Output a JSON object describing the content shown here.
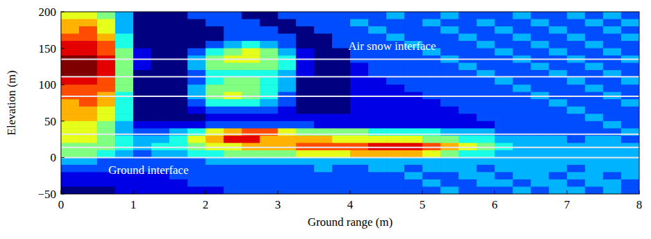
{
  "chart_data": {
    "type": "heatmap",
    "x_label": "Ground range (m)",
    "y_label": "Elevation (m)",
    "xlim": [
      0,
      8
    ],
    "ylim": [
      -50,
      200
    ],
    "xticks": [
      0,
      1,
      2,
      3,
      4,
      5,
      6,
      7,
      8
    ],
    "yticks": [
      {
        "value": -50,
        "label": "−50"
      },
      0,
      50,
      100,
      150,
      200
    ],
    "color": "jet",
    "zlim": [
      0,
      10
    ],
    "x": [
      0.125,
      0.375,
      0.625,
      0.875,
      1.125,
      1.375,
      1.625,
      1.875,
      2.125,
      2.375,
      2.625,
      2.875,
      3.125,
      3.375,
      3.625,
      3.875,
      4.125,
      4.375,
      4.625,
      4.875,
      5.125,
      5.375,
      5.625,
      5.875,
      6.125,
      6.375,
      6.625,
      6.875,
      7.125,
      7.375,
      7.625,
      7.875
    ],
    "y": [
      195,
      185,
      175,
      165,
      155,
      145,
      135,
      125,
      115,
      105,
      95,
      85,
      75,
      65,
      55,
      45,
      35,
      25,
      15,
      5,
      -5,
      -15,
      -25,
      -35,
      -45
    ],
    "cells": [
      [
        6,
        6,
        5,
        3,
        0,
        0,
        0,
        2,
        2,
        2,
        0,
        0,
        2,
        2,
        2,
        2,
        2,
        2,
        3,
        2,
        2,
        3,
        2,
        2,
        2,
        3,
        2,
        2,
        3,
        2,
        3,
        2
      ],
      [
        7,
        7,
        6,
        3,
        0,
        0,
        0,
        0,
        2,
        2,
        2,
        0,
        0,
        2,
        2,
        2,
        3,
        2,
        2,
        2,
        3,
        2,
        2,
        3,
        2,
        2,
        3,
        2,
        2,
        3,
        2,
        3
      ],
      [
        7,
        8,
        6,
        3,
        0,
        0,
        0,
        0,
        0,
        2,
        2,
        2,
        0,
        0,
        2,
        2,
        2,
        3,
        2,
        2,
        2,
        3,
        2,
        2,
        3,
        2,
        2,
        3,
        2,
        2,
        3,
        2
      ],
      [
        8,
        8,
        7,
        4,
        0,
        0,
        0,
        0,
        0,
        2,
        2,
        2,
        2,
        0,
        0,
        2,
        2,
        2,
        3,
        2,
        2,
        2,
        3,
        2,
        2,
        3,
        2,
        2,
        3,
        2,
        2,
        3
      ],
      [
        9,
        9,
        8,
        4,
        0,
        0,
        0,
        0,
        2,
        3,
        4,
        3,
        2,
        0,
        0,
        2,
        2,
        2,
        2,
        3,
        2,
        2,
        2,
        3,
        2,
        2,
        3,
        2,
        2,
        3,
        2,
        2
      ],
      [
        9,
        9,
        8,
        5,
        1,
        0,
        0,
        2,
        4,
        5,
        6,
        5,
        3,
        1,
        0,
        0,
        2,
        2,
        2,
        2,
        3,
        2,
        2,
        2,
        3,
        2,
        2,
        3,
        2,
        2,
        3,
        2
      ],
      [
        10,
        10,
        9,
        5,
        1,
        0,
        0,
        3,
        5,
        6,
        6,
        5,
        4,
        1,
        0,
        0,
        2,
        2,
        2,
        2,
        2,
        3,
        2,
        2,
        2,
        3,
        2,
        2,
        3,
        2,
        2,
        3
      ],
      [
        10,
        10,
        9,
        5,
        1,
        0,
        0,
        3,
        5,
        5,
        5,
        5,
        4,
        1,
        0,
        0,
        1,
        2,
        2,
        2,
        2,
        2,
        3,
        2,
        2,
        2,
        3,
        2,
        2,
        3,
        2,
        2
      ],
      [
        10,
        10,
        9,
        5,
        0,
        0,
        0,
        2,
        4,
        4,
        4,
        4,
        3,
        1,
        0,
        0,
        1,
        2,
        2,
        2,
        2,
        2,
        2,
        3,
        2,
        2,
        2,
        3,
        2,
        2,
        3,
        2
      ],
      [
        9,
        9,
        8,
        5,
        0,
        0,
        0,
        2,
        4,
        5,
        5,
        4,
        3,
        0,
        0,
        0,
        1,
        1,
        2,
        2,
        2,
        2,
        2,
        2,
        3,
        2,
        2,
        2,
        3,
        2,
        2,
        3
      ],
      [
        8,
        8,
        8,
        5,
        0,
        0,
        0,
        3,
        5,
        5,
        5,
        4,
        3,
        0,
        0,
        0,
        1,
        1,
        1,
        2,
        2,
        2,
        2,
        2,
        2,
        3,
        2,
        2,
        2,
        3,
        2,
        2
      ],
      [
        8,
        8,
        7,
        4,
        0,
        0,
        0,
        3,
        5,
        6,
        5,
        4,
        2,
        0,
        0,
        0,
        1,
        1,
        1,
        1,
        2,
        2,
        2,
        2,
        2,
        2,
        3,
        2,
        2,
        2,
        3,
        2
      ],
      [
        7,
        8,
        7,
        4,
        0,
        0,
        0,
        2,
        4,
        4,
        4,
        3,
        2,
        0,
        0,
        0,
        1,
        1,
        1,
        1,
        1,
        2,
        2,
        2,
        2,
        2,
        2,
        3,
        2,
        2,
        2,
        3
      ],
      [
        7,
        7,
        6,
        4,
        0,
        0,
        0,
        1,
        2,
        2,
        2,
        2,
        1,
        0,
        0,
        0,
        1,
        1,
        1,
        1,
        1,
        1,
        2,
        2,
        2,
        2,
        2,
        2,
        3,
        2,
        2,
        2
      ],
      [
        7,
        7,
        6,
        4,
        0,
        0,
        0,
        0,
        1,
        1,
        1,
        1,
        1,
        1,
        1,
        1,
        1,
        1,
        1,
        1,
        1,
        1,
        1,
        2,
        2,
        2,
        2,
        2,
        2,
        3,
        2,
        2
      ],
      [
        6,
        6,
        5,
        3,
        1,
        1,
        1,
        1,
        2,
        2,
        2,
        2,
        2,
        2,
        1,
        1,
        1,
        1,
        1,
        1,
        1,
        1,
        1,
        1,
        2,
        2,
        2,
        2,
        2,
        2,
        3,
        2
      ],
      [
        6,
        6,
        5,
        3,
        2,
        2,
        3,
        4,
        6,
        7,
        8,
        8,
        6,
        5,
        5,
        5,
        5,
        4,
        4,
        4,
        4,
        3,
        3,
        3,
        2,
        2,
        2,
        2,
        2,
        2,
        2,
        3
      ],
      [
        6,
        6,
        5,
        4,
        3,
        3,
        4,
        6,
        7,
        9,
        9,
        7,
        7,
        7,
        7,
        6,
        6,
        6,
        6,
        6,
        5,
        5,
        4,
        4,
        3,
        3,
        3,
        3,
        2,
        3,
        3,
        2
      ],
      [
        5,
        5,
        5,
        4,
        3,
        4,
        4,
        5,
        6,
        6,
        7,
        7,
        7,
        8,
        8,
        8,
        8,
        9,
        9,
        9,
        8,
        7,
        6,
        5,
        4,
        3,
        3,
        3,
        3,
        3,
        3,
        3
      ],
      [
        5,
        5,
        4,
        3,
        2,
        3,
        3,
        4,
        4,
        5,
        5,
        5,
        5,
        6,
        6,
        6,
        7,
        7,
        7,
        7,
        6,
        5,
        4,
        4,
        3,
        3,
        3,
        3,
        3,
        3,
        3,
        3
      ],
      [
        3,
        3,
        2,
        2,
        2,
        2,
        2,
        2,
        3,
        3,
        3,
        3,
        3,
        3,
        3,
        3,
        3,
        3,
        3,
        3,
        3,
        3,
        3,
        3,
        3,
        3,
        3,
        3,
        3,
        3,
        3,
        3
      ],
      [
        2,
        2,
        2,
        2,
        2,
        2,
        2,
        2,
        2,
        2,
        2,
        2,
        2,
        2,
        3,
        2,
        2,
        3,
        3,
        2,
        3,
        3,
        3,
        2,
        3,
        3,
        3,
        3,
        2,
        3,
        3,
        3
      ],
      [
        1,
        1,
        1,
        1,
        1,
        1,
        2,
        2,
        2,
        2,
        2,
        2,
        2,
        2,
        2,
        2,
        2,
        2,
        2,
        3,
        2,
        2,
        3,
        3,
        2,
        3,
        3,
        2,
        3,
        3,
        2,
        3
      ],
      [
        1,
        1,
        1,
        1,
        1,
        1,
        1,
        2,
        2,
        2,
        2,
        2,
        2,
        2,
        2,
        2,
        2,
        2,
        2,
        2,
        3,
        2,
        2,
        3,
        3,
        2,
        3,
        3,
        2,
        3,
        3,
        2
      ],
      [
        0,
        0,
        0,
        1,
        1,
        1,
        1,
        1,
        1,
        2,
        2,
        2,
        2,
        2,
        2,
        2,
        2,
        2,
        2,
        2,
        2,
        3,
        2,
        2,
        2,
        3,
        2,
        3,
        3,
        2,
        3,
        2
      ]
    ],
    "interfaces": [
      135,
      111,
      84,
      32,
      14,
      0
    ],
    "annotations": [
      {
        "text": "Air snow interface",
        "x": 4.58,
        "y": 153
      },
      {
        "text": "Ground interface",
        "x": 1.21,
        "y": -17
      }
    ]
  }
}
